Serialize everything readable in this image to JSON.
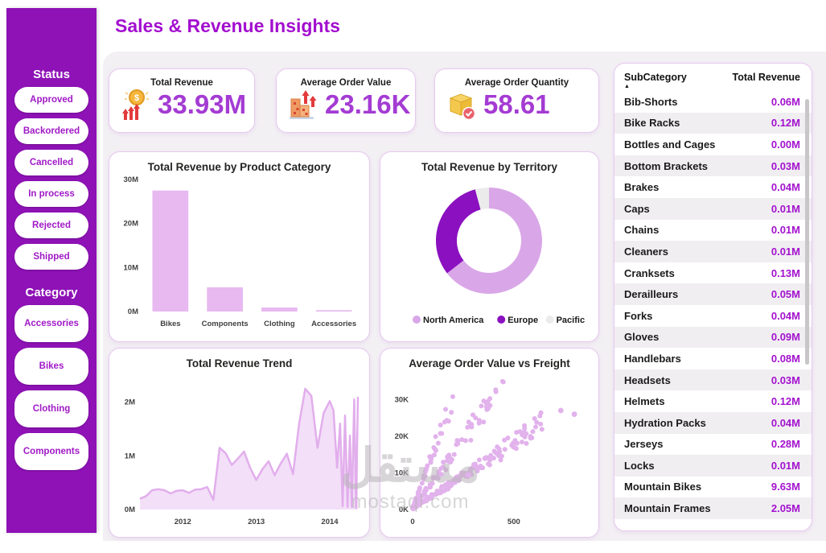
{
  "app": {
    "title": "Sales & Revenue Insights",
    "watermark": {
      "arabic": "مستقل",
      "domain": "mostaql.com"
    }
  },
  "sidebar": {
    "status": {
      "label": "Status",
      "items": [
        "Approved",
        "Backordered",
        "Cancelled",
        "In process",
        "Rejected",
        "Shipped"
      ]
    },
    "category": {
      "label": "Category",
      "items": [
        "Accessories",
        "Bikes",
        "Clothing",
        "Components"
      ]
    }
  },
  "kpis": [
    {
      "label": "Total Revenue",
      "value": "33.93M",
      "icon": "coin-growth-icon"
    },
    {
      "label": "Average Order Value",
      "value": "23.16K",
      "icon": "boxes-growth-icon"
    },
    {
      "label": "Average Order Quantity",
      "value": "58.61",
      "icon": "package-check-icon"
    }
  ],
  "colors": {
    "accent": "#A312CE",
    "sidebar": "#8E12B6",
    "kpiValue": "#A43BD3",
    "barFill": "#E7B9F0",
    "areaStroke": "#E2AEEC",
    "areaFill": "#F3DFF8",
    "scatterDot": "#E2B2EC",
    "axisText": "#404040"
  },
  "chart_data": [
    {
      "type": "bar",
      "title": "Total Revenue by Product Category",
      "categories": [
        "Bikes",
        "Components",
        "Clothing",
        "Accessories"
      ],
      "values": [
        27.5,
        5.5,
        0.9,
        0.3
      ],
      "yticks": [
        0,
        10,
        20,
        30
      ],
      "ytick_suffix": "M",
      "ylim": [
        0,
        30
      ],
      "xlabel": "",
      "ylabel": "",
      "grid": false
    },
    {
      "type": "pie",
      "title": "Total Revenue by Territory",
      "slices": [
        {
          "label": "North America",
          "share": 64.5,
          "color": "#D9A7E8"
        },
        {
          "label": "Europe",
          "share": 31.3,
          "color": "#8A10C0"
        },
        {
          "label": "Pacific",
          "share": 4.2,
          "color": "#ECEBEC"
        }
      ],
      "donut": true,
      "legend_position": "bottom"
    },
    {
      "type": "area",
      "title": "Total Revenue Trend",
      "x_unit": "months since Jun 2011",
      "points": [
        [
          0,
          0.2
        ],
        [
          1,
          0.25
        ],
        [
          2,
          0.36
        ],
        [
          3,
          0.38
        ],
        [
          4,
          0.36
        ],
        [
          5,
          0.3
        ],
        [
          6,
          0.35
        ],
        [
          7,
          0.36
        ],
        [
          8,
          0.31
        ],
        [
          9,
          0.37
        ],
        [
          10,
          0.38
        ],
        [
          11,
          0.42
        ],
        [
          12,
          0.18
        ],
        [
          13,
          1.15
        ],
        [
          14,
          1.05
        ],
        [
          15,
          0.83
        ],
        [
          16,
          0.95
        ],
        [
          17,
          1.08
        ],
        [
          18,
          0.78
        ],
        [
          19,
          0.55
        ],
        [
          20,
          0.75
        ],
        [
          21,
          0.9
        ],
        [
          22,
          0.64
        ],
        [
          23,
          0.86
        ],
        [
          24,
          1.04
        ],
        [
          25,
          0.66
        ],
        [
          26,
          1.6
        ],
        [
          27,
          2.25
        ],
        [
          28,
          2.12
        ],
        [
          29,
          1.15
        ],
        [
          30,
          1.8
        ],
        [
          31,
          2.02
        ],
        [
          31.6,
          1.85
        ],
        [
          32.2,
          0.78
        ],
        [
          32.7,
          1.6
        ],
        [
          33.1,
          0.06
        ],
        [
          33.5,
          1.75
        ],
        [
          33.9,
          0.05
        ],
        [
          34.3,
          1.38
        ],
        [
          34.6,
          0.05
        ],
        [
          35.0,
          2.05
        ],
        [
          35.3,
          0.03
        ],
        [
          35.6,
          2.1
        ]
      ],
      "xticks": [
        {
          "x": 7,
          "label": "2012"
        },
        {
          "x": 19,
          "label": "2013"
        },
        {
          "x": 31,
          "label": "2014"
        }
      ],
      "yticks": [
        0,
        1,
        2
      ],
      "ytick_suffix": "M",
      "ylim": [
        0,
        2.4
      ],
      "xlim": [
        0,
        35.6
      ]
    },
    {
      "type": "scatter",
      "title": "Average Order Value vs Freight",
      "xlim": [
        0,
        870
      ],
      "ylim": [
        0,
        36000
      ],
      "xticks": [
        0,
        500
      ],
      "yticks": [
        0,
        10000,
        20000,
        30000
      ],
      "ytick_labels": [
        "0K",
        "10K",
        "20K",
        "30K"
      ],
      "clusters": [
        {
          "slope": 150,
          "xmax": 200,
          "n": 55
        },
        {
          "slope": 75,
          "xmax": 455,
          "n": 75
        },
        {
          "slope": 36,
          "xmax": 650,
          "n": 160
        }
      ],
      "outliers": [
        [
          732,
          27000
        ],
        [
          799,
          26000
        ]
      ],
      "seed": 42
    },
    {
      "type": "table",
      "headers": [
        "SubCategory",
        "Total Revenue"
      ],
      "sorted_by": "SubCategory ascending",
      "rows": [
        [
          "Bib-Shorts",
          "0.06M"
        ],
        [
          "Bike Racks",
          "0.12M"
        ],
        [
          "Bottles and Cages",
          "0.00M"
        ],
        [
          "Bottom Brackets",
          "0.03M"
        ],
        [
          "Brakes",
          "0.04M"
        ],
        [
          "Caps",
          "0.01M"
        ],
        [
          "Chains",
          "0.01M"
        ],
        [
          "Cleaners",
          "0.01M"
        ],
        [
          "Cranksets",
          "0.13M"
        ],
        [
          "Derailleurs",
          "0.05M"
        ],
        [
          "Forks",
          "0.04M"
        ],
        [
          "Gloves",
          "0.09M"
        ],
        [
          "Handlebars",
          "0.08M"
        ],
        [
          "Headsets",
          "0.03M"
        ],
        [
          "Helmets",
          "0.12M"
        ],
        [
          "Hydration Packs",
          "0.04M"
        ],
        [
          "Jerseys",
          "0.28M"
        ],
        [
          "Locks",
          "0.01M"
        ],
        [
          "Mountain Bikes",
          "9.63M"
        ],
        [
          "Mountain Frames",
          "2.05M"
        ]
      ]
    }
  ]
}
